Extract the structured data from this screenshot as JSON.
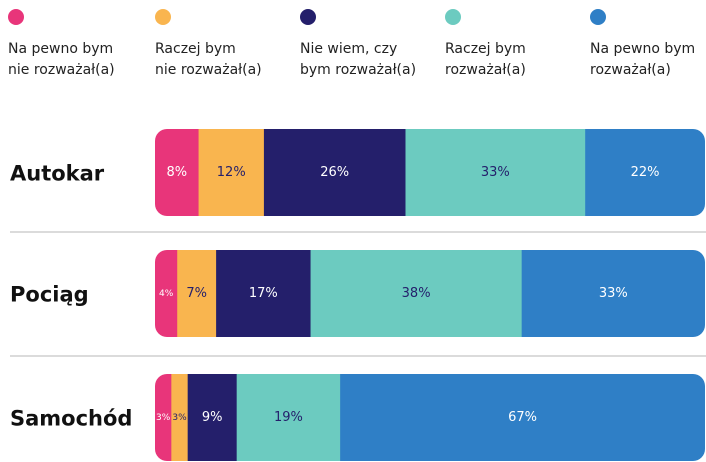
{
  "chart_data": {
    "type": "stacked-bar",
    "categories": [
      "Autokar",
      "Pociąg",
      "Samochód"
    ],
    "series": [
      {
        "name": "Na pewno bym\nnie rozważał(a)",
        "color": "#e8357a",
        "values": [
          8,
          4,
          3
        ],
        "value_labels": [
          "8%",
          "4%",
          "3%"
        ]
      },
      {
        "name": "Raczej bym\nnie rozważał(a)",
        "color": "#f9b54f",
        "values": [
          12,
          7,
          3
        ],
        "value_labels": [
          "12%",
          "7%",
          "3%"
        ]
      },
      {
        "name": "Nie wiem, czy\nbym rozważał(a)",
        "color": "#241f6b",
        "values": [
          26,
          17,
          9
        ],
        "value_labels": [
          "26%",
          "17%",
          "9%"
        ]
      },
      {
        "name": "Raczej bym\nrozważał(a)",
        "color": "#6ccbc0",
        "values": [
          33,
          38,
          19
        ],
        "value_labels": [
          "33%",
          "38%",
          "19%"
        ]
      },
      {
        "name": "Na pewno bym\nrozważał(a)",
        "color": "#2f7fc6",
        "values": [
          22,
          33,
          67
        ],
        "value_labels": [
          "22%",
          "33%",
          "67%"
        ]
      }
    ]
  }
}
